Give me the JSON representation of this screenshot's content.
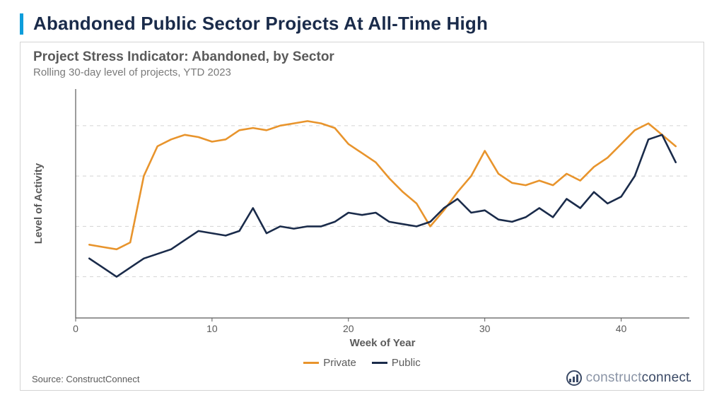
{
  "page_title": "Abandoned Public Sector Projects At All-Time High",
  "chart": {
    "type": "line",
    "title": "Project Stress Indicator: Abandoned, by Sector",
    "subtitle": "Rolling 30-day level of projects, YTD 2023",
    "x_axis": {
      "label": "Week of Year",
      "min": 0,
      "max": 45,
      "ticks": [
        0,
        10,
        20,
        30,
        40
      ],
      "label_fontsize": 15,
      "tick_fontsize": 14
    },
    "y_axis": {
      "label": "Level of Activity",
      "min": 0,
      "max": 100,
      "gridlines": [
        18,
        40,
        62,
        84
      ],
      "show_tick_labels": false,
      "label_fontsize": 15
    },
    "gridline_color": "#d4d4d4",
    "gridline_dash": "5,5",
    "axis_color": "#5a5a5a",
    "background_color": "#ffffff",
    "line_width": 2.6,
    "series": [
      {
        "name": "Private",
        "color": "#e8942c",
        "x": [
          1,
          2,
          3,
          4,
          5,
          6,
          7,
          8,
          9,
          10,
          11,
          12,
          13,
          14,
          15,
          16,
          17,
          18,
          19,
          20,
          21,
          22,
          23,
          24,
          25,
          26,
          27,
          28,
          29,
          30,
          31,
          32,
          33,
          34,
          35,
          36,
          37,
          38,
          39,
          40,
          41,
          42,
          43,
          44
        ],
        "y": [
          32,
          31,
          30,
          33,
          62,
          75,
          78,
          80,
          79,
          77,
          78,
          82,
          83,
          82,
          84,
          85,
          86,
          85,
          83,
          76,
          72,
          68,
          61,
          55,
          50,
          40,
          47,
          55,
          62,
          73,
          63,
          59,
          58,
          60,
          58,
          63,
          60,
          66,
          70,
          76,
          82,
          85,
          80,
          75
        ]
      },
      {
        "name": "Public",
        "color": "#1a2b4a",
        "x": [
          1,
          2,
          3,
          4,
          5,
          6,
          7,
          8,
          9,
          10,
          11,
          12,
          13,
          14,
          15,
          16,
          17,
          18,
          19,
          20,
          21,
          22,
          23,
          24,
          25,
          26,
          27,
          28,
          29,
          30,
          31,
          32,
          33,
          34,
          35,
          36,
          37,
          38,
          39,
          40,
          41,
          42,
          43,
          44
        ],
        "y": [
          26,
          22,
          18,
          22,
          26,
          28,
          30,
          34,
          38,
          37,
          36,
          38,
          48,
          37,
          40,
          39,
          40,
          40,
          42,
          46,
          45,
          46,
          42,
          41,
          40,
          42,
          48,
          52,
          46,
          47,
          43,
          42,
          44,
          48,
          44,
          52,
          48,
          55,
          50,
          53,
          62,
          78,
          80,
          68
        ]
      }
    ],
    "legend": {
      "items": [
        {
          "label": "Private",
          "color": "#e8942c"
        },
        {
          "label": "Public",
          "color": "#1a2b4a"
        }
      ]
    }
  },
  "source_text": "Source: ConstructConnect",
  "brand": {
    "part1": "construct",
    "part2": "connect"
  },
  "colors": {
    "title_bar": "#0d9ddb",
    "title_text": "#1a2b4a",
    "card_border": "#d4d4d4",
    "subtext": "#7a7a7a",
    "text": "#5a5a5a"
  }
}
